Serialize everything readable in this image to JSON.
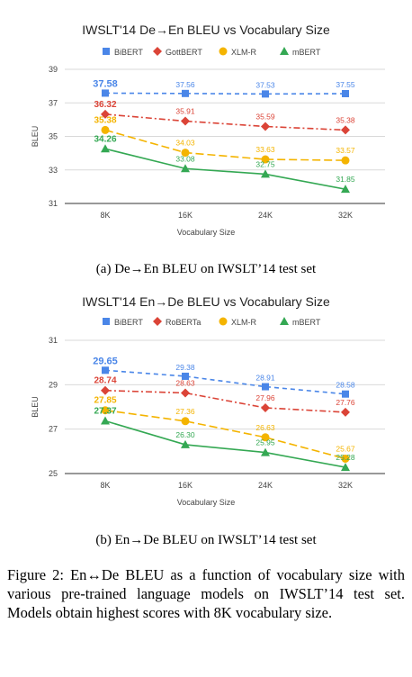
{
  "colors": {
    "bibert": "#4a86e8",
    "gottbert": "#db4437",
    "xlmr": "#f4b400",
    "mbert": "#34a853",
    "grid": "#d9d9d9",
    "axis": "#333333"
  },
  "chart_data": [
    {
      "type": "line",
      "title": "IWSLT'14 De→En BLEU vs Vocabulary Size",
      "xlabel": "Vocabulary Size",
      "ylabel": "BLEU",
      "categories": [
        "8K",
        "16K",
        "24K",
        "32K"
      ],
      "ylim": [
        31,
        39
      ],
      "yticks": [
        "31",
        "33",
        "35",
        "37",
        "39"
      ],
      "grid": true,
      "legend": "top",
      "series": [
        {
          "name": "BiBERT",
          "values": [
            37.58,
            37.56,
            37.53,
            37.55
          ],
          "labels": [
            "37.58",
            "37.56",
            "37.53",
            "37.55"
          ],
          "color": "#4a86e8",
          "marker": "square",
          "dash": "dashed"
        },
        {
          "name": "GottBERT",
          "values": [
            36.32,
            35.91,
            35.59,
            35.38
          ],
          "labels": [
            "36.32",
            "35.91",
            "35.59",
            "35.38"
          ],
          "color": "#db4437",
          "marker": "diamond",
          "dash": "dashdot"
        },
        {
          "name": "XLM-R",
          "values": [
            35.38,
            34.03,
            33.63,
            33.57
          ],
          "labels": [
            "35.38",
            "34.03",
            "33.63",
            "33.57"
          ],
          "color": "#f4b400",
          "marker": "circle",
          "dash": "longdash"
        },
        {
          "name": "mBERT",
          "values": [
            34.26,
            33.08,
            32.75,
            31.85
          ],
          "labels": [
            "34.26",
            "33.08",
            "32.75",
            "31.85"
          ],
          "color": "#34a853",
          "marker": "triangle",
          "dash": "solid"
        }
      ]
    },
    {
      "type": "line",
      "title": "IWSLT'14 En→De BLEU vs Vocabulary Size",
      "xlabel": "Vocabulary Size",
      "ylabel": "BLEU",
      "categories": [
        "8K",
        "16K",
        "24K",
        "32K"
      ],
      "ylim": [
        25,
        31
      ],
      "yticks": [
        "25",
        "27",
        "29",
        "31"
      ],
      "grid": true,
      "legend": "top",
      "series": [
        {
          "name": "BiBERT",
          "values": [
            29.65,
            29.38,
            28.91,
            28.58
          ],
          "labels": [
            "29.65",
            "29.38",
            "28.91",
            "28.58"
          ],
          "color": "#4a86e8",
          "marker": "square",
          "dash": "dashed"
        },
        {
          "name": "RoBERTa",
          "values": [
            28.74,
            28.63,
            27.96,
            27.76
          ],
          "labels": [
            "28.74",
            "28.63",
            "27.96",
            "27.76"
          ],
          "color": "#db4437",
          "marker": "diamond",
          "dash": "dashdot"
        },
        {
          "name": "XLM-R",
          "values": [
            27.85,
            27.36,
            26.63,
            25.67
          ],
          "labels": [
            "27.85",
            "27.36",
            "26.63",
            "25.67"
          ],
          "color": "#f4b400",
          "marker": "circle",
          "dash": "longdash"
        },
        {
          "name": "mBERT",
          "values": [
            27.37,
            26.3,
            25.95,
            25.28
          ],
          "labels": [
            "27.37",
            "26.30",
            "25.95",
            "25.28"
          ],
          "color": "#34a853",
          "marker": "triangle",
          "dash": "solid"
        }
      ]
    }
  ],
  "captions": {
    "sub_a": "(a) De→En BLEU on IWSLT’14 test set",
    "sub_b": "(b) En→De BLEU on IWSLT’14 test set",
    "figure": "Figure 2: En↔De BLEU as a function of vocabulary size with various pre-trained language models on IWSLT’14 test set. Models obtain highest scores with 8K vocabulary size."
  }
}
